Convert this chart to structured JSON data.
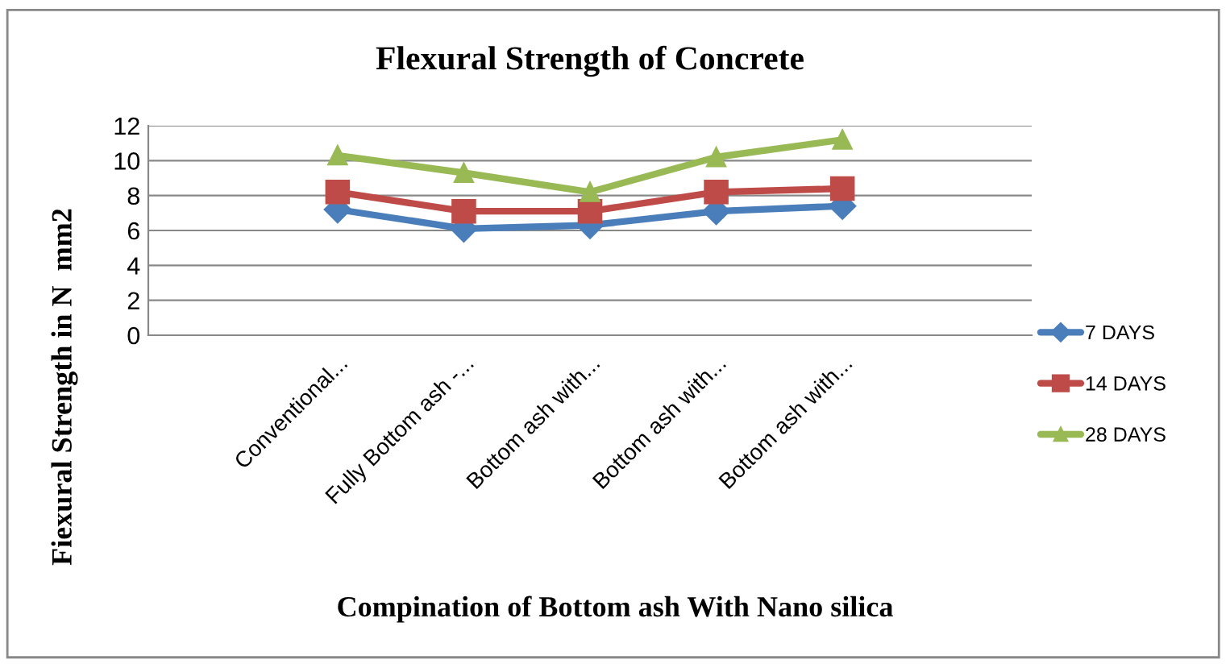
{
  "chart_data": {
    "type": "line",
    "title": "Flexural Strength of Concrete",
    "xlabel": "Compination of Bottom ash With Nano silica",
    "ylabel": "Fiexural Strength in N  mm2",
    "categories": [
      null,
      "Conventional...",
      "Fully Bottom ash -...",
      "Bottom ash with...",
      "Bottom ash with...",
      "Bottom ash with...",
      null
    ],
    "series": [
      {
        "name": "7 DAYS",
        "color": "#4a7ebb",
        "marker": "diamond",
        "values": [
          null,
          7.2,
          6.1,
          6.3,
          7.1,
          7.4,
          null
        ]
      },
      {
        "name": "14 DAYS",
        "color": "#be4b48",
        "marker": "square",
        "values": [
          null,
          8.2,
          7.1,
          7.1,
          8.2,
          8.4,
          null
        ]
      },
      {
        "name": "28 DAYS",
        "color": "#98b954",
        "marker": "triangle",
        "values": [
          null,
          10.3,
          9.3,
          8.2,
          10.2,
          11.2,
          null
        ]
      }
    ],
    "ylim": [
      0,
      12
    ],
    "yticks": [
      0,
      2,
      4,
      6,
      8,
      10,
      12
    ],
    "grid": "y",
    "legend": "right"
  }
}
